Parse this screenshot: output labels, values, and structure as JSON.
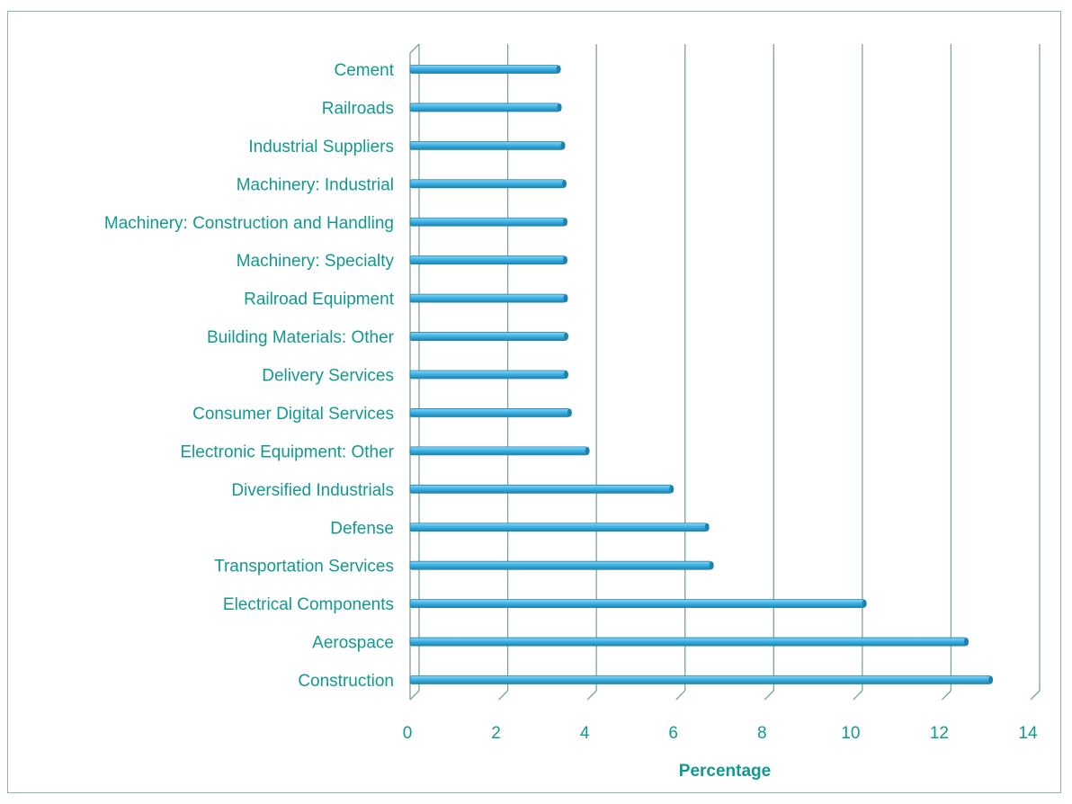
{
  "chart_data": {
    "type": "bar",
    "orientation": "horizontal",
    "title": "",
    "xlabel": "Percentage",
    "ylabel": "",
    "xlim": [
      0,
      14
    ],
    "x_ticks": [
      "0",
      "2",
      "4",
      "6",
      "8",
      "10",
      "12",
      "14"
    ],
    "grid": true,
    "legend": "none",
    "categories": [
      "Cement",
      "Railroads",
      "Industrial Suppliers",
      "Machinery: Industrial",
      "Machinery: Construction and Handling",
      "Machinery: Specialty",
      "Railroad Equipment",
      "Building Materials: Other",
      "Delivery Services",
      "Consumer Digital Services",
      "Electronic Equipment: Other",
      "Diversified Industrials",
      "Defense",
      "Transportation Services",
      "Electrical Components",
      "Aerospace",
      "Construction"
    ],
    "values": [
      3.35,
      3.37,
      3.45,
      3.48,
      3.5,
      3.5,
      3.51,
      3.52,
      3.52,
      3.6,
      4.0,
      5.9,
      6.7,
      6.8,
      10.25,
      12.55,
      13.1
    ],
    "colors": {
      "bar": "#3db4e6",
      "bar_highlight": "#8fd6f5",
      "bar_shadow": "#1f82ad",
      "text": "#12998f",
      "grid": "#7fa399",
      "frame": "#8fb3a6"
    }
  }
}
